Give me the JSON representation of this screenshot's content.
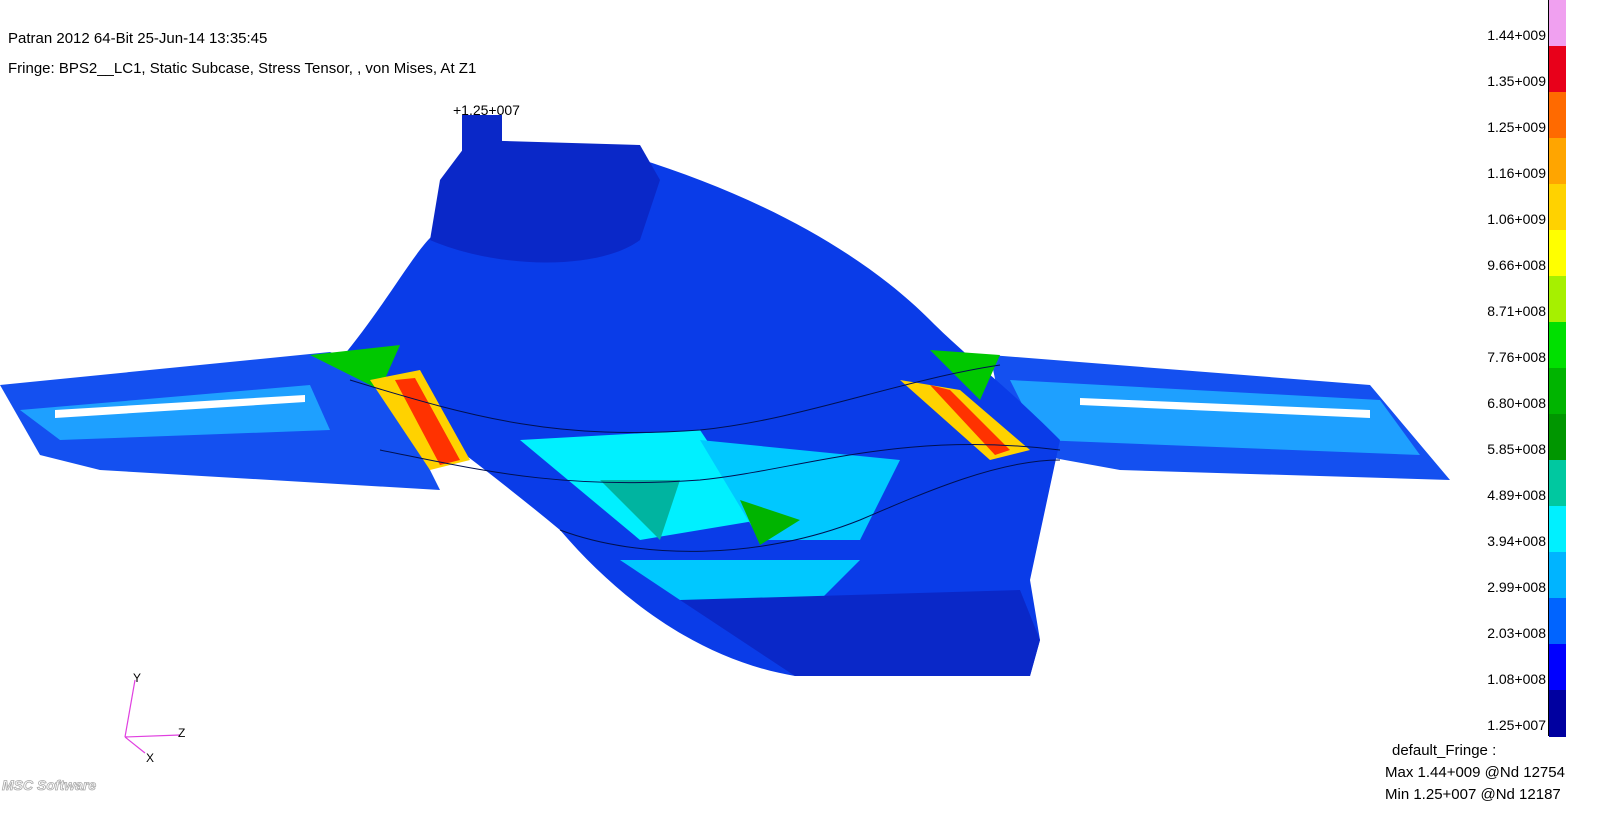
{
  "header": {
    "title": "Patran 2012 64-Bit 25-Jun-14 13:35:45",
    "fringe_line": "Fringe: BPS2__LC1, Static Subcase, Stress Tensor, , von Mises, At Z1"
  },
  "marker": {
    "label": "+1.25+007"
  },
  "legend": {
    "ticks": [
      "1.44+009",
      "1.35+009",
      "1.25+009",
      "1.16+009",
      "1.06+009",
      "9.66+008",
      "8.71+008",
      "7.76+008",
      "6.80+008",
      "5.85+008",
      "4.89+008",
      "3.94+008",
      "2.99+008",
      "2.03+008",
      "1.08+008",
      "1.25+007"
    ],
    "colors": [
      "#f0a0f0",
      "#e8001a",
      "#ff6a00",
      "#ffa500",
      "#ffd200",
      "#ffff00",
      "#a6f000",
      "#00e000",
      "#00b400",
      "#009600",
      "#00c8a0",
      "#00f0ff",
      "#00b4ff",
      "#0064ff",
      "#0000ff",
      "#0000a0"
    ],
    "fringe_name": "default_Fringe :",
    "max_text": "Max 1.44+009 @Nd 12754",
    "min_text": "Min 1.25+007 @Nd 12187"
  },
  "axes": {
    "y": "Y",
    "z": "Z",
    "x": "X"
  },
  "logo": {
    "text": "MSC Software"
  }
}
